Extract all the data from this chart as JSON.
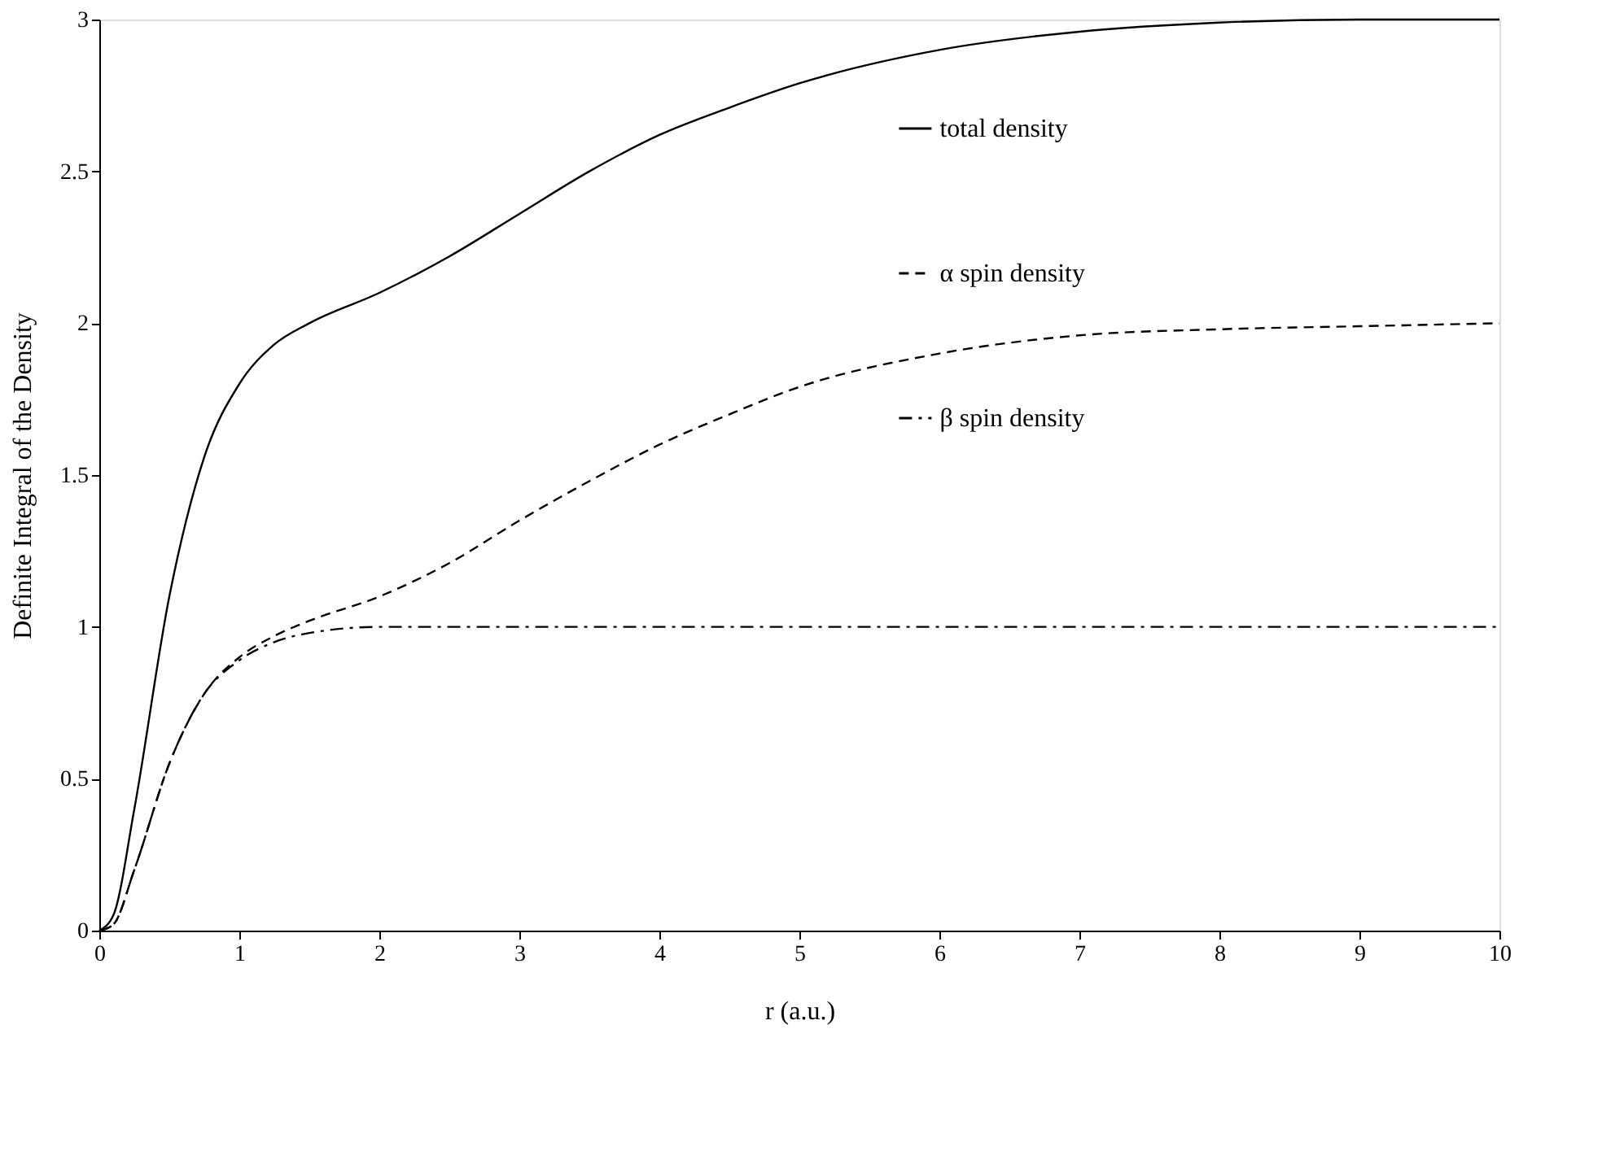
{
  "chart_data": {
    "type": "line",
    "xlabel": "r (a.u.)",
    "ylabel": "Definite Integral of the Density",
    "x": [
      0,
      0.1,
      0.25,
      0.5,
      0.75,
      1,
      1.25,
      1.5,
      2,
      2.5,
      3,
      3.5,
      4,
      4.5,
      5,
      6,
      7,
      8,
      9,
      10
    ],
    "series": [
      {
        "name": "total density",
        "color": "#000000",
        "line_style": "solid",
        "values": [
          0,
          0.05,
          0.4,
          1.1,
          1.56,
          1.8,
          1.93,
          2.0,
          2.1,
          2.22,
          2.36,
          2.5,
          2.62,
          2.71,
          2.79,
          2.9,
          2.96,
          2.99,
          3.0,
          3.0
        ]
      },
      {
        "name": "α spin density",
        "color": "#000000",
        "line_style": "dashed",
        "values": [
          0,
          0.02,
          0.2,
          0.55,
          0.78,
          0.9,
          0.97,
          1.02,
          1.1,
          1.21,
          1.35,
          1.48,
          1.6,
          1.7,
          1.79,
          1.9,
          1.96,
          1.98,
          1.99,
          2.0
        ]
      },
      {
        "name": "β spin density",
        "color": "#000000",
        "line_style": "dashdot",
        "values": [
          0,
          0.02,
          0.2,
          0.55,
          0.78,
          0.89,
          0.95,
          0.98,
          1.0,
          1.0,
          1.0,
          1.0,
          1.0,
          1.0,
          1.0,
          1.0,
          1.0,
          1.0,
          1.0,
          1.0
        ]
      }
    ],
    "xlim": [
      0,
      10
    ],
    "xticks": [
      0,
      1,
      2,
      3,
      4,
      5,
      6,
      7,
      8,
      9,
      10
    ],
    "ylim": [
      0,
      3
    ],
    "yticks": [
      0,
      0.5,
      1,
      1.5,
      2,
      2.5,
      3
    ],
    "grid": false,
    "legend": "right",
    "marker": "none"
  }
}
